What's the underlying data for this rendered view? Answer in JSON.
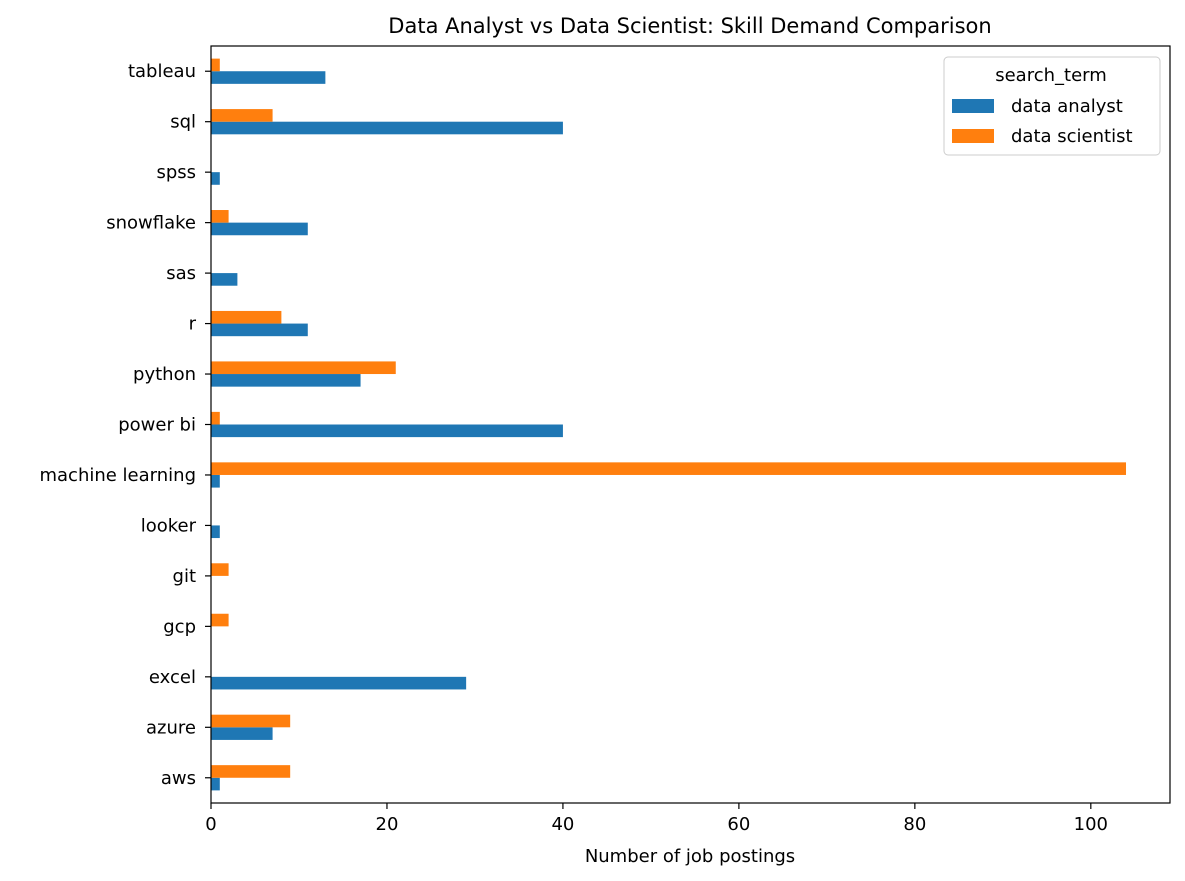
{
  "chart_data": {
    "type": "bar",
    "orientation": "horizontal",
    "title": "Data Analyst vs Data Scientist: Skill Demand Comparison",
    "xlabel": "Number of job postings",
    "ylabel": "",
    "xlim": [
      0,
      109
    ],
    "xticks": [
      0,
      20,
      40,
      60,
      80,
      100
    ],
    "grid": false,
    "categories": [
      "aws",
      "azure",
      "excel",
      "gcp",
      "git",
      "looker",
      "machine learning",
      "power bi",
      "python",
      "r",
      "sas",
      "snowflake",
      "spss",
      "sql",
      "tableau"
    ],
    "series": [
      {
        "name": "data analyst",
        "color": "#1f77b4",
        "values": [
          1,
          7,
          29,
          0,
          0,
          1,
          1,
          40,
          17,
          11,
          3,
          11,
          1,
          40,
          13
        ]
      },
      {
        "name": "data scientist",
        "color": "#ff7f0e",
        "values": [
          9,
          9,
          0,
          2,
          2,
          0,
          104,
          1,
          21,
          8,
          0,
          2,
          0,
          7,
          1
        ]
      }
    ],
    "legend": {
      "title": "search_term",
      "placement": "top-right"
    }
  }
}
